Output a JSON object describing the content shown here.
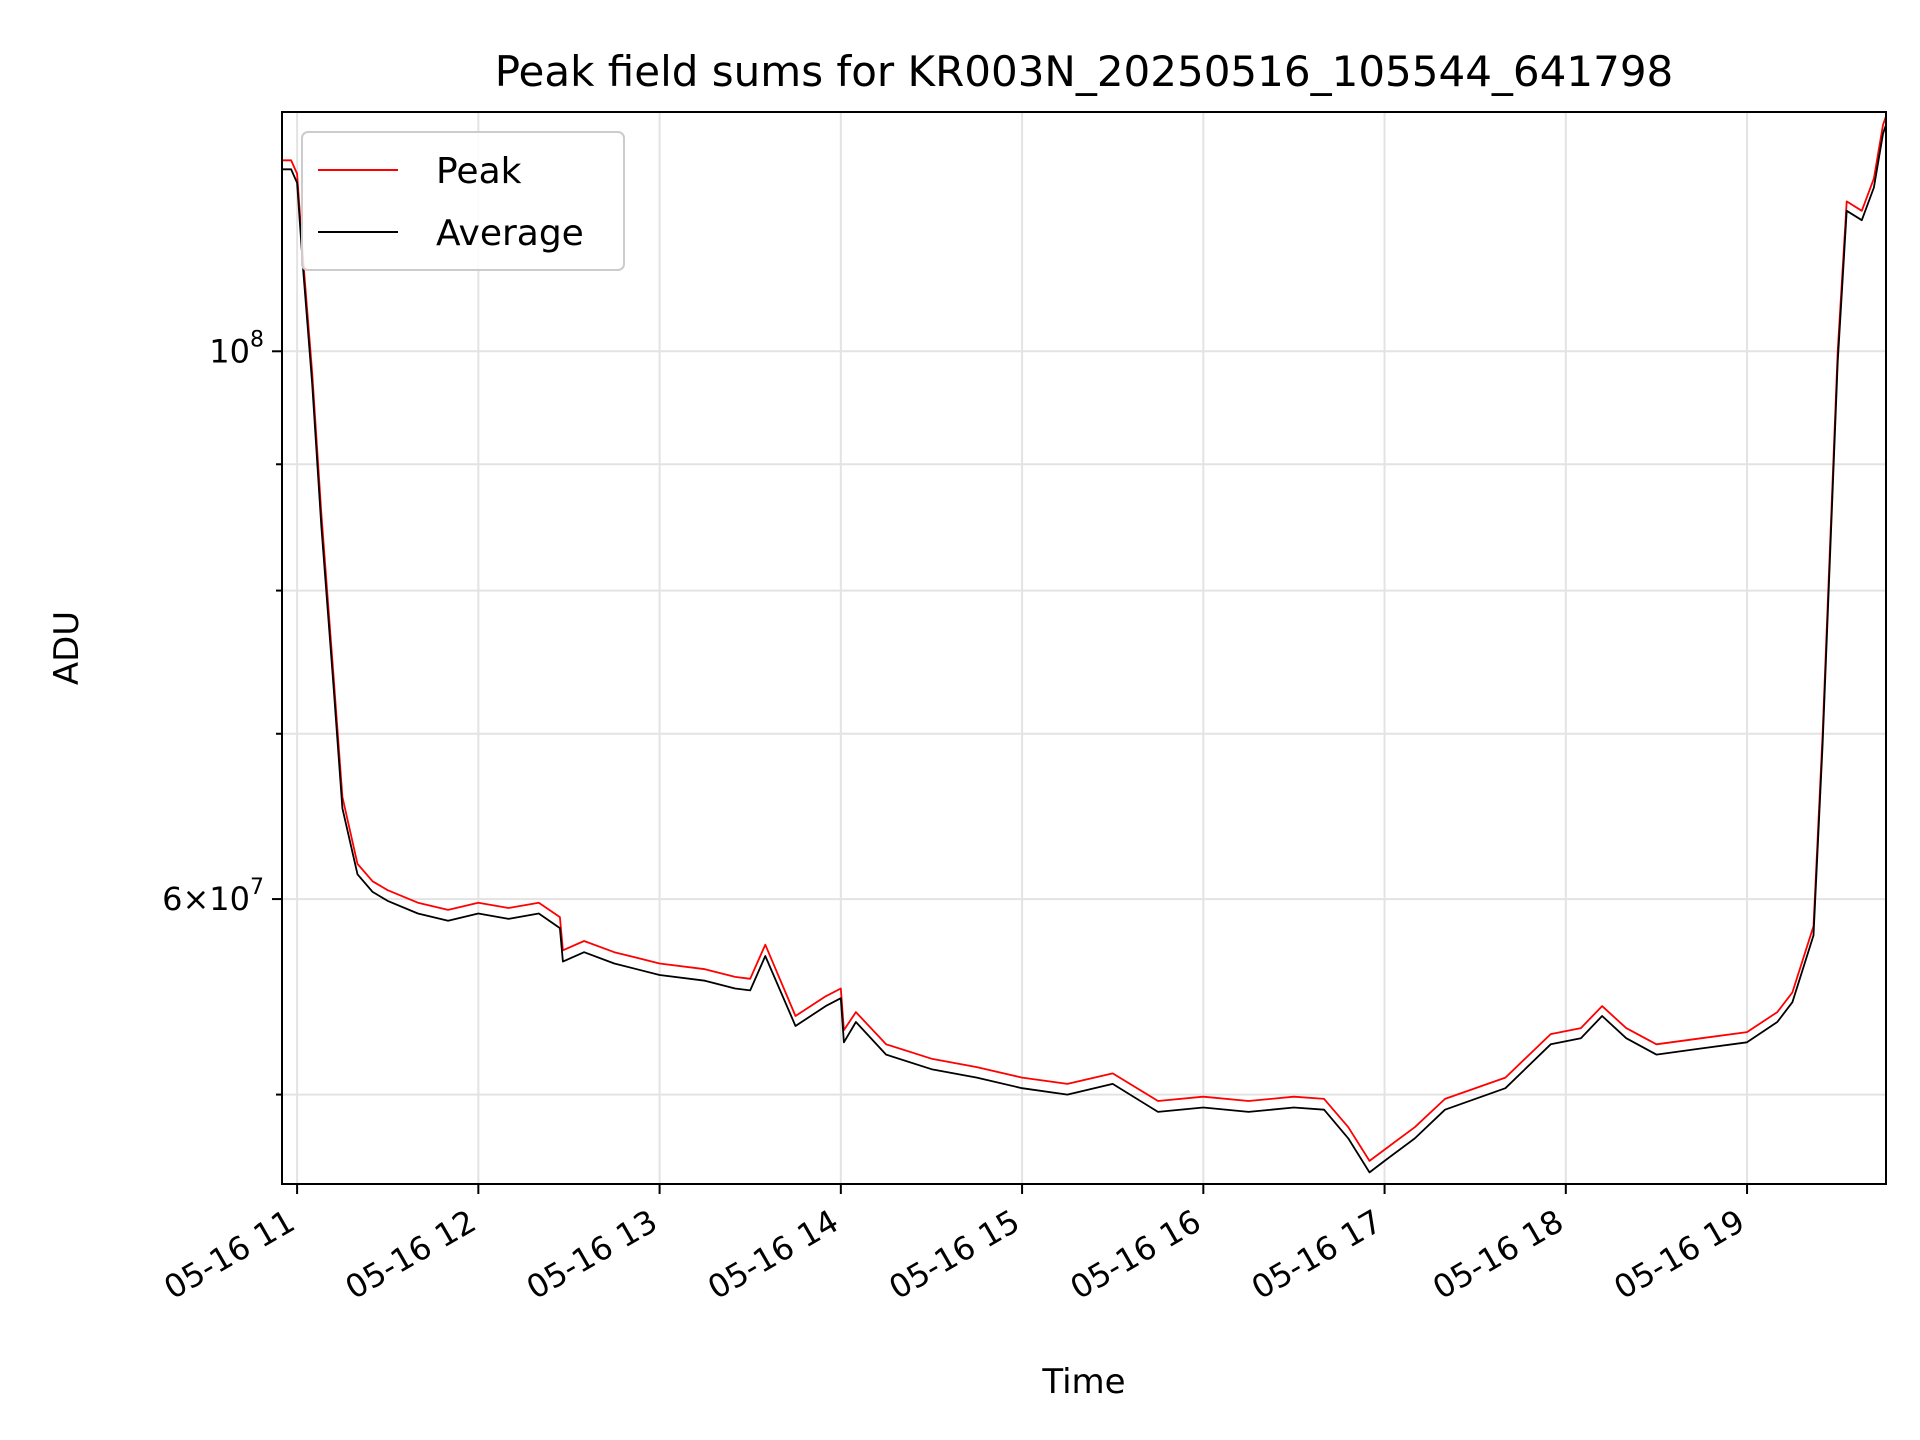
{
  "chart_data": {
    "type": "line",
    "title": "Peak field sums for KR003N_20250516_105544_641798",
    "xlabel": "Time",
    "ylabel": "ADU",
    "x_axis": "time",
    "y_scale": "log",
    "grid": true,
    "legend_position": "top-left",
    "xlim": [
      "2025-05-16 10:55",
      "2025-05-16 19:46"
    ],
    "ylim": [
      46000000,
      125000000
    ],
    "x_ticks": [
      "2025-05-16 11:00",
      "2025-05-16 12:00",
      "2025-05-16 13:00",
      "2025-05-16 14:00",
      "2025-05-16 15:00",
      "2025-05-16 16:00",
      "2025-05-16 17:00",
      "2025-05-16 18:00",
      "2025-05-16 19:00"
    ],
    "x_tick_labels": [
      "05-16 11",
      "05-16 12",
      "05-16 13",
      "05-16 14",
      "05-16 15",
      "05-16 16",
      "05-16 17",
      "05-16 18",
      "05-16 19"
    ],
    "y_major_ticks": [
      {
        "value": 60000000,
        "mantissa": "6",
        "exponent": "7"
      },
      {
        "value": 100000000,
        "mantissa": "",
        "exponent": "8"
      }
    ],
    "y_minor_ticks": [
      50000000,
      70000000,
      80000000,
      90000000
    ],
    "x": [
      "10:55",
      "10:58",
      "11:00",
      "11:02",
      "11:05",
      "11:08",
      "11:12",
      "11:15",
      "11:20",
      "11:25",
      "11:30",
      "11:40",
      "11:50",
      "12:00",
      "12:10",
      "12:20",
      "12:27",
      "12:28",
      "12:35",
      "12:45",
      "13:00",
      "13:15",
      "13:25",
      "13:30",
      "13:35",
      "13:45",
      "13:55",
      "14:00",
      "14:01",
      "14:05",
      "14:15",
      "14:30",
      "14:45",
      "15:00",
      "15:15",
      "15:30",
      "15:45",
      "16:00",
      "16:15",
      "16:30",
      "16:40",
      "16:48",
      "16:55",
      "17:00",
      "17:10",
      "17:20",
      "17:40",
      "17:55",
      "18:05",
      "18:12",
      "18:20",
      "18:30",
      "18:45",
      "19:00",
      "19:10",
      "19:15",
      "19:22",
      "19:25",
      "19:30",
      "19:33",
      "19:38",
      "19:42",
      "19:45",
      "19:46"
    ],
    "series": [
      {
        "name": "Peak",
        "color": "#ff0000",
        "values": [
          119500000,
          119500000,
          118000000,
          109000000,
          98000000,
          86000000,
          74000000,
          66000000,
          62000000,
          61000000,
          60500000,
          59800000,
          59400000,
          59800000,
          59500000,
          59800000,
          59000000,
          57200000,
          57700000,
          57100000,
          56500000,
          56200000,
          55800000,
          55700000,
          57500000,
          53800000,
          54800000,
          55200000,
          53100000,
          54000000,
          52400000,
          51700000,
          51300000,
          50800000,
          50500000,
          51000000,
          49700000,
          49900000,
          49700000,
          49900000,
          49800000,
          48500000,
          47000000,
          47500000,
          48500000,
          49800000,
          50800000,
          52900000,
          53200000,
          54300000,
          53200000,
          52400000,
          52700000,
          53000000,
          54000000,
          55000000,
          58500000,
          70000000,
          100000000,
          115000000,
          114000000,
          117500000,
          123500000,
          124500000
        ]
      },
      {
        "name": "Average",
        "color": "#000000",
        "values": [
          118500000,
          118500000,
          117000000,
          108000000,
          97000000,
          85000000,
          73300000,
          65300000,
          61400000,
          60400000,
          59900000,
          59200000,
          58800000,
          59200000,
          58900000,
          59200000,
          58400000,
          56600000,
          57100000,
          56500000,
          55900000,
          55600000,
          55200000,
          55100000,
          56900000,
          53300000,
          54300000,
          54700000,
          52500000,
          53500000,
          51900000,
          51200000,
          50800000,
          50300000,
          50000000,
          50500000,
          49200000,
          49400000,
          49200000,
          49400000,
          49300000,
          48000000,
          46500000,
          47000000,
          48000000,
          49300000,
          50300000,
          52400000,
          52700000,
          53800000,
          52700000,
          51900000,
          52200000,
          52500000,
          53500000,
          54500000,
          58000000,
          69300000,
          99000000,
          114000000,
          113000000,
          116500000,
          122500000,
          123500000
        ]
      }
    ]
  }
}
